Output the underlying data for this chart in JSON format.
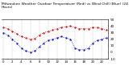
{
  "title": "Milwaukee Weather Outdoor Temperature (Red) vs Wind Chill (Blue) (24 Hours)",
  "title_fontsize": 3.2,
  "background_color": "#ffffff",
  "red_temp": [
    38,
    36,
    32,
    28,
    24,
    22,
    20,
    21,
    26,
    30,
    32,
    34,
    36,
    38,
    39,
    40,
    38,
    36,
    36,
    36,
    38,
    38,
    36,
    34
  ],
  "blue_chill": [
    30,
    26,
    20,
    14,
    6,
    2,
    0,
    2,
    8,
    14,
    18,
    20,
    22,
    24,
    22,
    20,
    6,
    4,
    4,
    6,
    14,
    18,
    20,
    22
  ],
  "x_hours": [
    0,
    1,
    2,
    3,
    4,
    5,
    6,
    7,
    8,
    9,
    10,
    11,
    12,
    13,
    14,
    15,
    16,
    17,
    18,
    19,
    20,
    21,
    22,
    23
  ],
  "x_labels": [
    "0",
    "",
    "2",
    "",
    "4",
    "",
    "6",
    "",
    "8",
    "",
    "10",
    "",
    "12",
    "",
    "14",
    "",
    "16",
    "",
    "18",
    "",
    "20",
    "",
    "22",
    ""
  ],
  "ylim": [
    -10,
    50
  ],
  "yticks": [
    -10,
    0,
    10,
    20,
    30,
    40,
    50
  ],
  "ytick_labels": [
    "-10",
    "0",
    "10",
    "20",
    "30",
    "40",
    "50"
  ],
  "ytick_fontsize": 3.0,
  "xtick_fontsize": 2.8,
  "grid_color": "#bbbbbb",
  "red_color": "#cc0000",
  "blue_color": "#0000cc",
  "marker_size": 1.2,
  "line_width": 0.6,
  "vgrid_every": 2
}
